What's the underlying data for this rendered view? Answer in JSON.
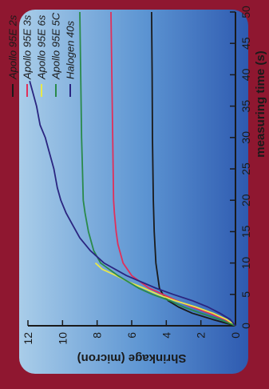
{
  "chart_data": {
    "type": "line",
    "orientation": "rotated 90 degrees counter-clockwise",
    "xlabel": "measuring time (s)",
    "ylabel": "Shrinkage (micron)",
    "xlim": [
      0,
      50
    ],
    "ylim": [
      0,
      12
    ],
    "xticks": [
      0,
      5,
      10,
      15,
      20,
      25,
      30,
      35,
      40,
      45,
      50
    ],
    "yticks": [
      0,
      2,
      4,
      6,
      8,
      10,
      12
    ],
    "grid": false,
    "legend_position": "top-right",
    "series": [
      {
        "name": "Apollo 95E 2s",
        "color": "#1a1a1a",
        "x": [
          0,
          1,
          2,
          3,
          4,
          5,
          6,
          8,
          10,
          15,
          20,
          30,
          40,
          50
        ],
        "y": [
          0,
          1.3,
          2.5,
          3.3,
          3.9,
          4.2,
          4.4,
          4.5,
          4.6,
          4.7,
          4.75,
          4.8,
          4.82,
          4.85
        ]
      },
      {
        "name": "Apollo 95E 3s",
        "color": "#e0305a",
        "x": [
          0,
          1,
          2,
          3,
          4,
          5,
          6,
          8,
          10,
          13,
          15,
          18,
          20,
          30,
          40,
          50
        ],
        "y": [
          0,
          0.6,
          1.5,
          2.5,
          3.4,
          4.2,
          5.0,
          6.0,
          6.5,
          6.8,
          6.9,
          7.0,
          7.05,
          7.1,
          7.15,
          7.2
        ]
      },
      {
        "name": "Apollo 95E 6s",
        "color": "#e8e84a",
        "x": [
          0,
          1,
          2,
          3,
          4,
          5,
          6,
          7,
          8,
          9,
          10
        ],
        "y": [
          0,
          0.5,
          1.3,
          2.3,
          3.5,
          4.5,
          5.3,
          6.2,
          6.9,
          7.7,
          8.1
        ]
      },
      {
        "name": "Apollo 95E 5C",
        "color": "#2a8a4a",
        "x": [
          0,
          1,
          2,
          3,
          4,
          5,
          6,
          8,
          10,
          12,
          15,
          18,
          20,
          25,
          30,
          40,
          50
        ],
        "y": [
          0,
          0.9,
          2.0,
          3.0,
          3.8,
          4.8,
          5.6,
          6.8,
          7.8,
          8.2,
          8.5,
          8.7,
          8.8,
          8.85,
          8.9,
          8.95,
          9.0
        ]
      },
      {
        "name": "Halogen 40s",
        "color": "#2a2580",
        "x": [
          0,
          1,
          2,
          3,
          4,
          5,
          6,
          8,
          10,
          12,
          14,
          16,
          18,
          20,
          22,
          25,
          28,
          30,
          32,
          35,
          37,
          39
        ],
        "y": [
          0,
          0.3,
          0.9,
          1.6,
          2.5,
          3.6,
          4.6,
          6.3,
          7.6,
          8.4,
          9.0,
          9.4,
          9.8,
          10.1,
          10.3,
          10.5,
          10.8,
          11.0,
          11.3,
          11.5,
          11.7,
          11.9
        ]
      }
    ]
  }
}
